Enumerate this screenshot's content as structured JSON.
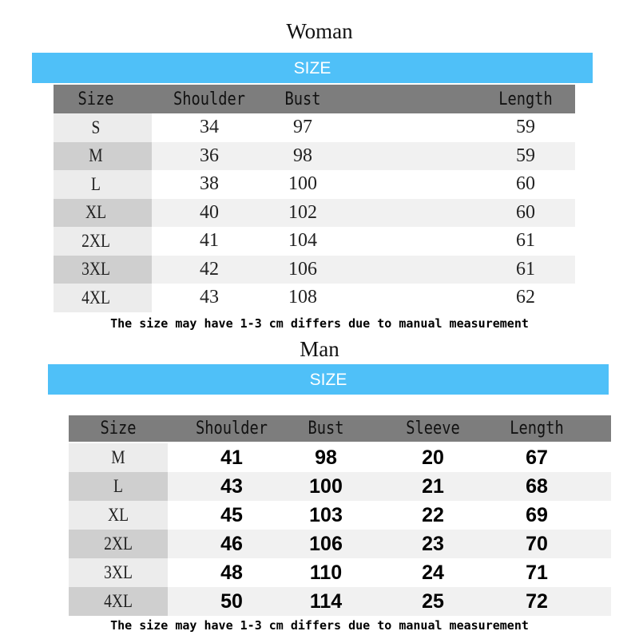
{
  "woman": {
    "title": "Woman",
    "banner": "SIZE",
    "headers": [
      "Size",
      "Shoulder",
      "Bust",
      "Length"
    ],
    "rows": [
      [
        "S",
        "34",
        "97",
        "59"
      ],
      [
        "M",
        "36",
        "98",
        "59"
      ],
      [
        "L",
        "38",
        "100",
        "60"
      ],
      [
        "XL",
        "40",
        "102",
        "60"
      ],
      [
        "2XL",
        "41",
        "104",
        "61"
      ],
      [
        "3XL",
        "42",
        "106",
        "61"
      ],
      [
        "4XL",
        "43",
        "108",
        "62"
      ]
    ],
    "note": "The size may have 1-3 cm differs due to manual measurement"
  },
  "man": {
    "title": "Man",
    "banner": "SIZE",
    "headers": [
      "Size",
      "Shoulder",
      "Bust",
      "Sleeve",
      "Length"
    ],
    "rows": [
      [
        "M",
        "41",
        "98",
        "20",
        "67"
      ],
      [
        "L",
        "43",
        "100",
        "21",
        "68"
      ],
      [
        "XL",
        "45",
        "103",
        "22",
        "69"
      ],
      [
        "2XL",
        "46",
        "106",
        "23",
        "70"
      ],
      [
        "3XL",
        "48",
        "110",
        "24",
        "71"
      ],
      [
        "4XL",
        "50",
        "114",
        "25",
        "72"
      ]
    ],
    "note": "The size may have 1-3 cm differs due to manual measurement"
  },
  "colors": {
    "banner": "#4fc0f8",
    "header": "#7d7d7d"
  }
}
